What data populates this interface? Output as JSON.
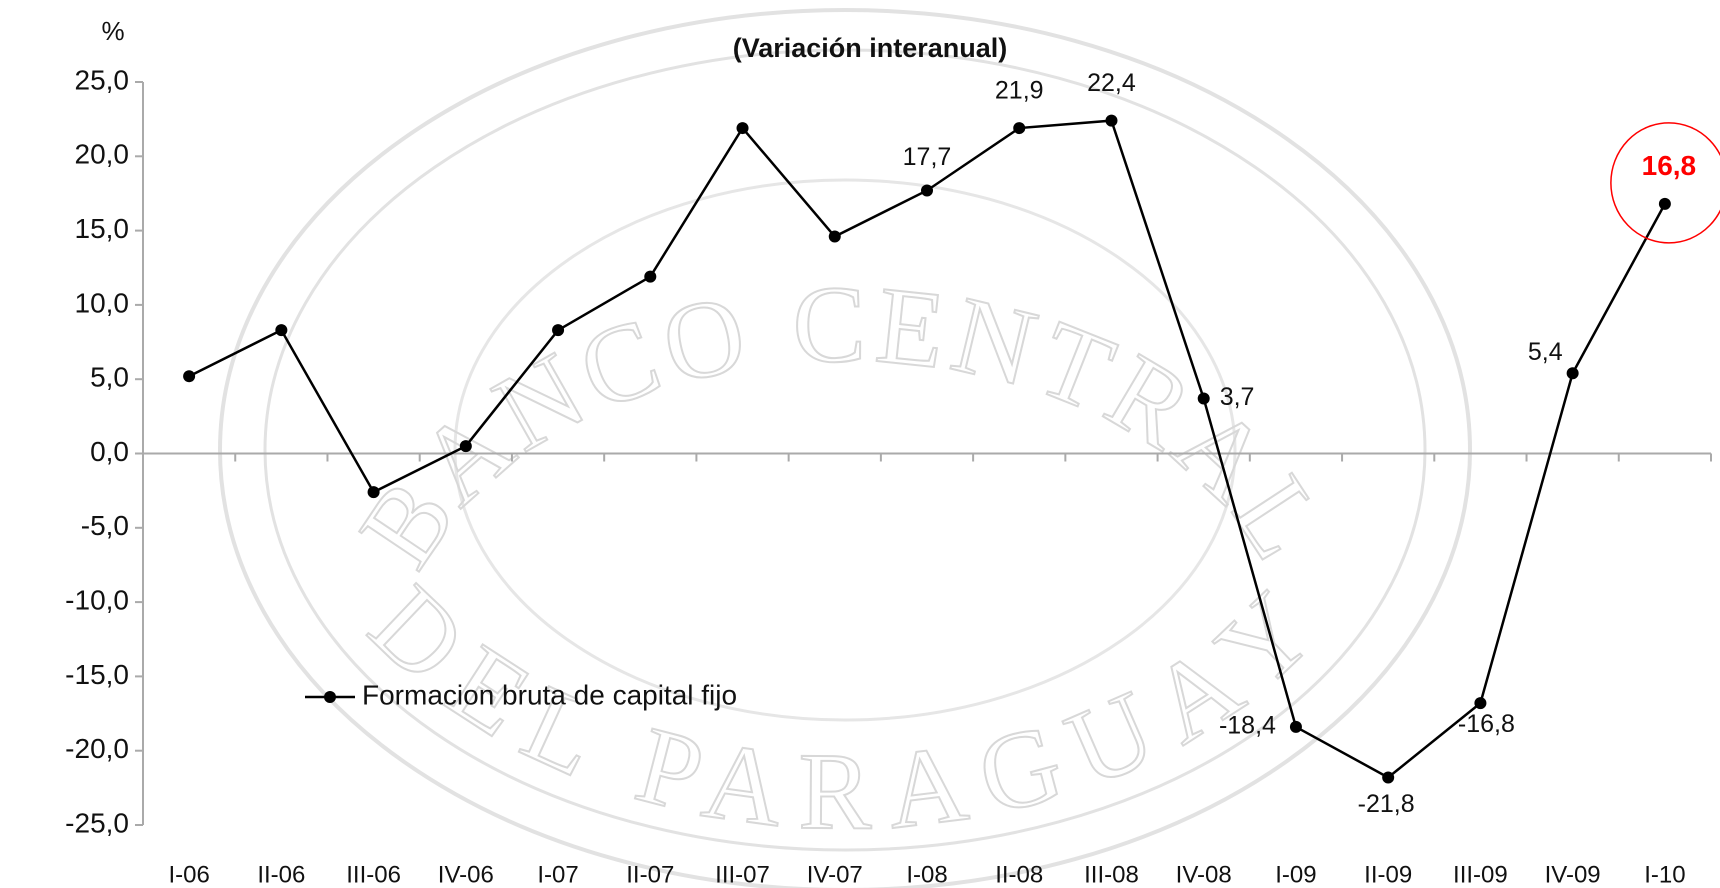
{
  "chart_data": {
    "type": "line",
    "title": "(Variación interanual)",
    "y_label": "%",
    "watermark": [
      "BANCO CENTRAL",
      "DEL PARAGUAY"
    ],
    "categories": [
      "I-06",
      "II-06",
      "III-06",
      "IV-06",
      "I-07",
      "II-07",
      "III-07",
      "IV-07",
      "I-08",
      "II-08",
      "III-08",
      "IV-08",
      "I-09",
      "II-09",
      "III-09",
      "IV-09",
      "I-10"
    ],
    "series": [
      {
        "name": "Formacion bruta de capital fijo",
        "color": "#000000",
        "values": [
          5.2,
          8.3,
          -2.6,
          0.5,
          8.3,
          11.9,
          21.9,
          14.6,
          17.7,
          21.9,
          22.4,
          3.7,
          -18.4,
          -21.8,
          -16.8,
          5.4,
          16.8
        ],
        "value_labels": [
          null,
          null,
          null,
          null,
          null,
          null,
          null,
          null,
          "17,7",
          "21,9",
          "22,4",
          "3,7",
          "-18,4",
          "-21,8",
          "-16,8",
          "5,4",
          "16,8"
        ]
      }
    ],
    "highlight": {
      "index": 16,
      "color": "#ff0000"
    },
    "ylim": [
      -25,
      25
    ],
    "yticks": [
      {
        "value": -25,
        "label": "-25,0"
      },
      {
        "value": -20,
        "label": "-20,0"
      },
      {
        "value": -15,
        "label": "-15,0"
      },
      {
        "value": -10,
        "label": "-10,0"
      },
      {
        "value": -5,
        "label": "-5,0"
      },
      {
        "value": 0,
        "label": "0,0"
      },
      {
        "value": 5,
        "label": "5,0"
      },
      {
        "value": 10,
        "label": "10,0"
      },
      {
        "value": 15,
        "label": "15,0"
      },
      {
        "value": 20,
        "label": "20,0"
      },
      {
        "value": 25,
        "label": "25,0"
      }
    ],
    "grid": false
  }
}
